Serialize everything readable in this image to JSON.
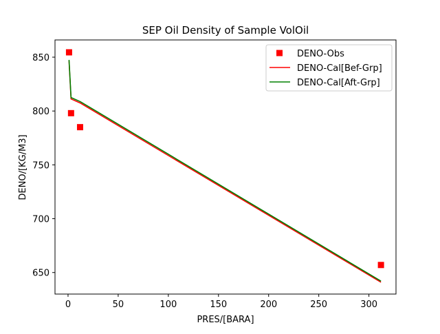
{
  "chart_data": {
    "type": "line",
    "title": "SEP Oil Density of Sample VolOil",
    "xlabel": "PRES/[BARA]",
    "ylabel": "DENO/[KG/M3]",
    "xlim": [
      -13,
      327
    ],
    "ylim": [
      630,
      866
    ],
    "xticks": [
      0,
      50,
      100,
      150,
      200,
      250,
      300
    ],
    "yticks": [
      650,
      700,
      750,
      800,
      850
    ],
    "grid": false,
    "legend_position": "top-right",
    "series": [
      {
        "name": "DENO-Obs",
        "kind": "marker",
        "color": "#ff0000",
        "points": [
          [
            1.0,
            854.5
          ],
          [
            3.0,
            798
          ],
          [
            12.0,
            785
          ],
          [
            312.0,
            657
          ]
        ]
      },
      {
        "name": "DENO-Cal[Bef-Grp]",
        "kind": "line",
        "color": "#ff0000",
        "points": [
          [
            1.0,
            846.5
          ],
          [
            3.0,
            811.2
          ],
          [
            12.0,
            807.5
          ],
          [
            312.0,
            641.0
          ]
        ]
      },
      {
        "name": "DENO-Cal[Aft-Grp]",
        "kind": "line",
        "color": "#008000",
        "points": [
          [
            1.0,
            847.5
          ],
          [
            3.0,
            812.5
          ],
          [
            12.0,
            808.8
          ],
          [
            312.0,
            642.0
          ]
        ]
      }
    ]
  }
}
